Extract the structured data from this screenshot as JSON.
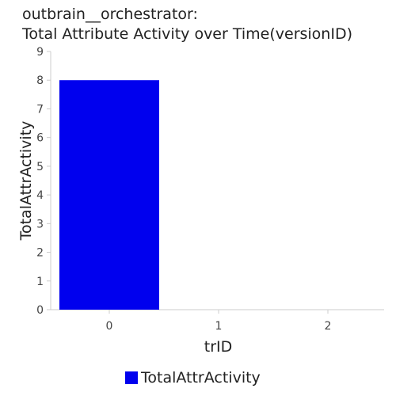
{
  "chart_data": {
    "type": "bar",
    "title_line1": "outbrain__orchestrator:",
    "title_line2": "Total Attribute Activity over Time(versionID)",
    "xlabel": "trID",
    "ylabel": "TotalAttrActivity",
    "categories": [
      "0",
      "1",
      "2"
    ],
    "series": [
      {
        "name": "TotalAttrActivity",
        "values": [
          8,
          0,
          0
        ],
        "color": "#0000ee"
      }
    ],
    "ylim": [
      0,
      9
    ],
    "yticks": [
      "0",
      "1",
      "2",
      "3",
      "4",
      "5",
      "6",
      "7",
      "8",
      "9"
    ],
    "grid": false,
    "legend_position": "bottom"
  }
}
